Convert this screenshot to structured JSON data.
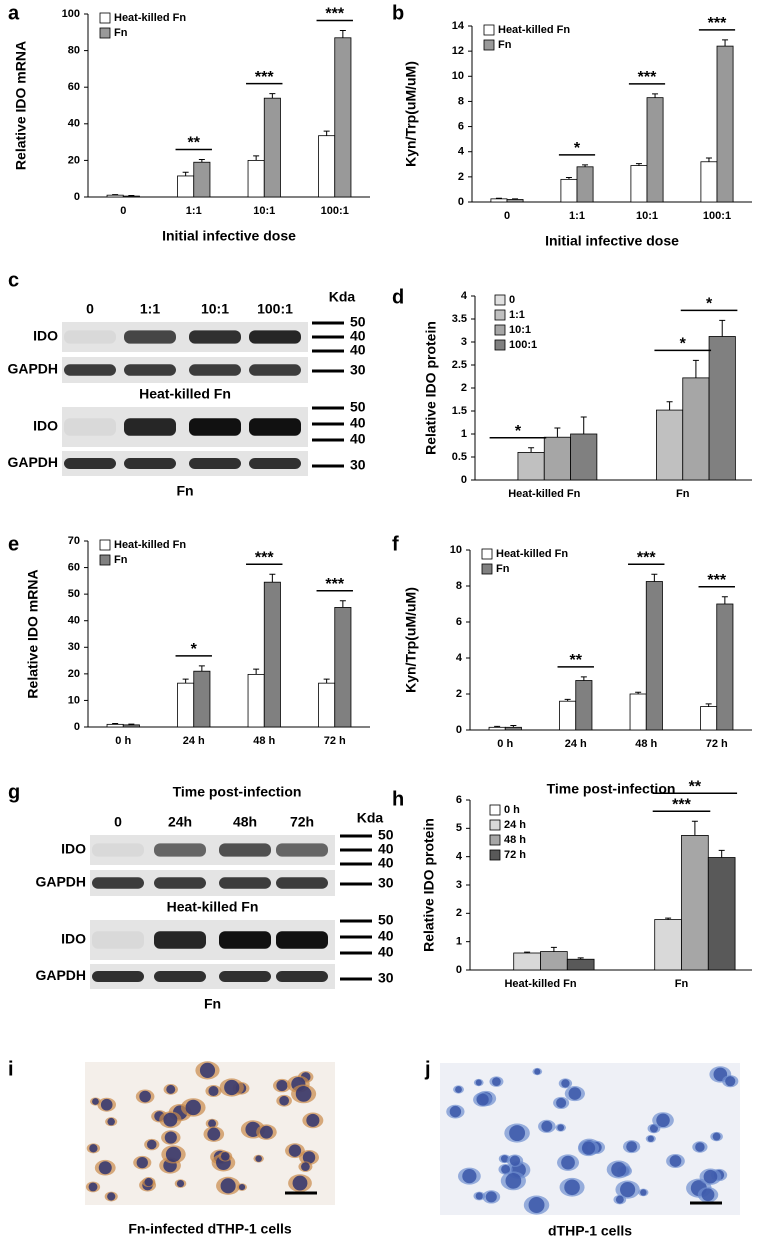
{
  "chart_data": [
    {
      "type": "bar",
      "label": "a",
      "y_label": "Relative IDO mRNA",
      "x_label": "Initial infective dose",
      "categories": [
        "0",
        "1:1",
        "10:1",
        "100:1"
      ],
      "series": [
        {
          "name": "Heat-killed Fn",
          "color": "#ffffff",
          "values": [
            1,
            11.5,
            20,
            33.5
          ],
          "errors": [
            0.3,
            2,
            2.5,
            2.5
          ]
        },
        {
          "name": "Fn",
          "color": "#999999",
          "values": [
            0.5,
            19,
            54,
            87
          ],
          "errors": [
            0.3,
            1.5,
            2.5,
            4
          ]
        }
      ],
      "ylim": [
        0,
        100
      ],
      "yticks": [
        0,
        20,
        40,
        60,
        80,
        100
      ],
      "annotations": [
        "**",
        "***",
        "***"
      ]
    },
    {
      "type": "bar",
      "label": "b",
      "y_label": "Kyn/Trp(uM/uM)",
      "x_label": "Initial infective dose",
      "categories": [
        "0",
        "1:1",
        "10:1",
        "100:1"
      ],
      "series": [
        {
          "name": "Heat-killed Fn",
          "color": "#ffffff",
          "values": [
            0.25,
            1.8,
            2.9,
            3.2
          ],
          "errors": [
            0.05,
            0.15,
            0.15,
            0.3
          ]
        },
        {
          "name": "Fn",
          "color": "#999999",
          "values": [
            0.2,
            2.8,
            8.3,
            12.4
          ],
          "errors": [
            0.05,
            0.15,
            0.3,
            0.5
          ]
        }
      ],
      "ylim": [
        0,
        14
      ],
      "yticks": [
        0,
        2,
        4,
        6,
        8,
        10,
        12,
        14
      ],
      "annotations": [
        "*",
        "***",
        "***"
      ]
    },
    {
      "type": "bar",
      "label": "d",
      "y_label": "Relative IDO protein",
      "categories": [
        "Heat-killed Fn",
        "Fn"
      ],
      "series": [
        {
          "name": "0",
          "color": "#e0e0e0",
          "values": [
            0,
            0
          ],
          "errors": [
            0,
            0
          ]
        },
        {
          "name": "1:1",
          "color": "#c0c0c0",
          "values": [
            0.6,
            1.52
          ],
          "errors": [
            0.1,
            0.18
          ]
        },
        {
          "name": "10:1",
          "color": "#a6a6a6",
          "values": [
            0.93,
            2.22
          ],
          "errors": [
            0.2,
            0.38
          ]
        },
        {
          "name": "100:1",
          "color": "#808080",
          "values": [
            1.0,
            3.12
          ],
          "errors": [
            0.37,
            0.35
          ]
        }
      ],
      "ylim": [
        0,
        4
      ],
      "yticks": [
        0,
        0.5,
        1,
        1.5,
        2,
        2.5,
        3,
        3.5,
        4
      ],
      "annotations": [
        "*",
        "*",
        "*"
      ]
    },
    {
      "type": "bar",
      "label": "e",
      "y_label": "Relative IDO mRNA",
      "categories": [
        "0 h",
        "24 h",
        "48 h",
        "72 h"
      ],
      "series": [
        {
          "name": "Heat-killed Fn",
          "color": "#ffffff",
          "values": [
            1,
            16.5,
            19.8,
            16.5
          ],
          "errors": [
            0.3,
            1.5,
            2,
            1.5
          ]
        },
        {
          "name": "Fn",
          "color": "#808080",
          "values": [
            0.8,
            21,
            54.5,
            45
          ],
          "errors": [
            0.3,
            2,
            3,
            2.5
          ]
        }
      ],
      "ylim": [
        0,
        70
      ],
      "yticks": [
        0,
        10,
        20,
        30,
        40,
        50,
        60,
        70
      ],
      "annotations": [
        "*",
        "***",
        "***"
      ]
    },
    {
      "type": "bar",
      "label": "f",
      "y_label": "Kyn/Trp(uM/uM)",
      "categories": [
        "0 h",
        "24 h",
        "48 h",
        "72 h"
      ],
      "series": [
        {
          "name": "Heat-killed Fn",
          "color": "#ffffff",
          "values": [
            0.15,
            1.6,
            2.0,
            1.3
          ],
          "errors": [
            0.05,
            0.1,
            0.1,
            0.15
          ]
        },
        {
          "name": "Fn",
          "color": "#808080",
          "values": [
            0.15,
            2.75,
            8.25,
            7.0
          ],
          "errors": [
            0.1,
            0.2,
            0.4,
            0.4
          ]
        }
      ],
      "ylim": [
        0,
        10
      ],
      "yticks": [
        0,
        2,
        4,
        6,
        8,
        10
      ],
      "annotations": [
        "**",
        "***",
        "***"
      ]
    },
    {
      "type": "bar",
      "label": "h",
      "title": "Time post-infection",
      "y_label": "Relative IDO protein",
      "categories": [
        "Heat-killed Fn",
        "Fn"
      ],
      "series": [
        {
          "name": "0 h",
          "color": "#ffffff",
          "values": [
            0,
            0
          ],
          "errors": [
            0,
            0
          ]
        },
        {
          "name": "24 h",
          "color": "#d9d9d9",
          "values": [
            0.6,
            1.78
          ],
          "errors": [
            0.03,
            0.05
          ]
        },
        {
          "name": "48 h",
          "color": "#a6a6a6",
          "values": [
            0.65,
            4.75
          ],
          "errors": [
            0.15,
            0.5
          ]
        },
        {
          "name": "72 h",
          "color": "#595959",
          "values": [
            0.38,
            3.97
          ],
          "errors": [
            0.05,
            0.25
          ]
        }
      ],
      "ylim": [
        0,
        6
      ],
      "yticks": [
        0,
        1,
        2,
        3,
        4,
        5,
        6
      ],
      "annotations": [
        "***",
        "**"
      ]
    }
  ],
  "blots": [
    {
      "label": "c",
      "columns": [
        "0",
        "1:1",
        "10:1",
        "100:1"
      ],
      "unit": "Kda",
      "groups": [
        {
          "rows": [
            "IDO",
            "GAPDH"
          ],
          "caption": "Heat-killed Fn",
          "markers": [
            "50",
            "40",
            "40",
            "30"
          ]
        },
        {
          "rows": [
            "IDO",
            "GAPDH"
          ],
          "caption": "Fn",
          "markers": [
            "50",
            "40",
            "40",
            "30"
          ]
        }
      ]
    },
    {
      "label": "g",
      "title": "Time post-infection",
      "columns": [
        "0",
        "24h",
        "48h",
        "72h"
      ],
      "unit": "Kda",
      "groups": [
        {
          "rows": [
            "IDO",
            "GAPDH"
          ],
          "caption": "Heat-killed Fn",
          "markers": [
            "50",
            "40",
            "40",
            "30"
          ]
        },
        {
          "rows": [
            "IDO",
            "GAPDH"
          ],
          "caption": "Fn",
          "markers": [
            "50",
            "40",
            "40",
            "30"
          ]
        }
      ]
    }
  ],
  "micrographs": [
    {
      "label": "i",
      "caption": "Fn-infected dTHP-1 cells"
    },
    {
      "label": "j",
      "caption": "dTHP-1 cells"
    }
  ]
}
